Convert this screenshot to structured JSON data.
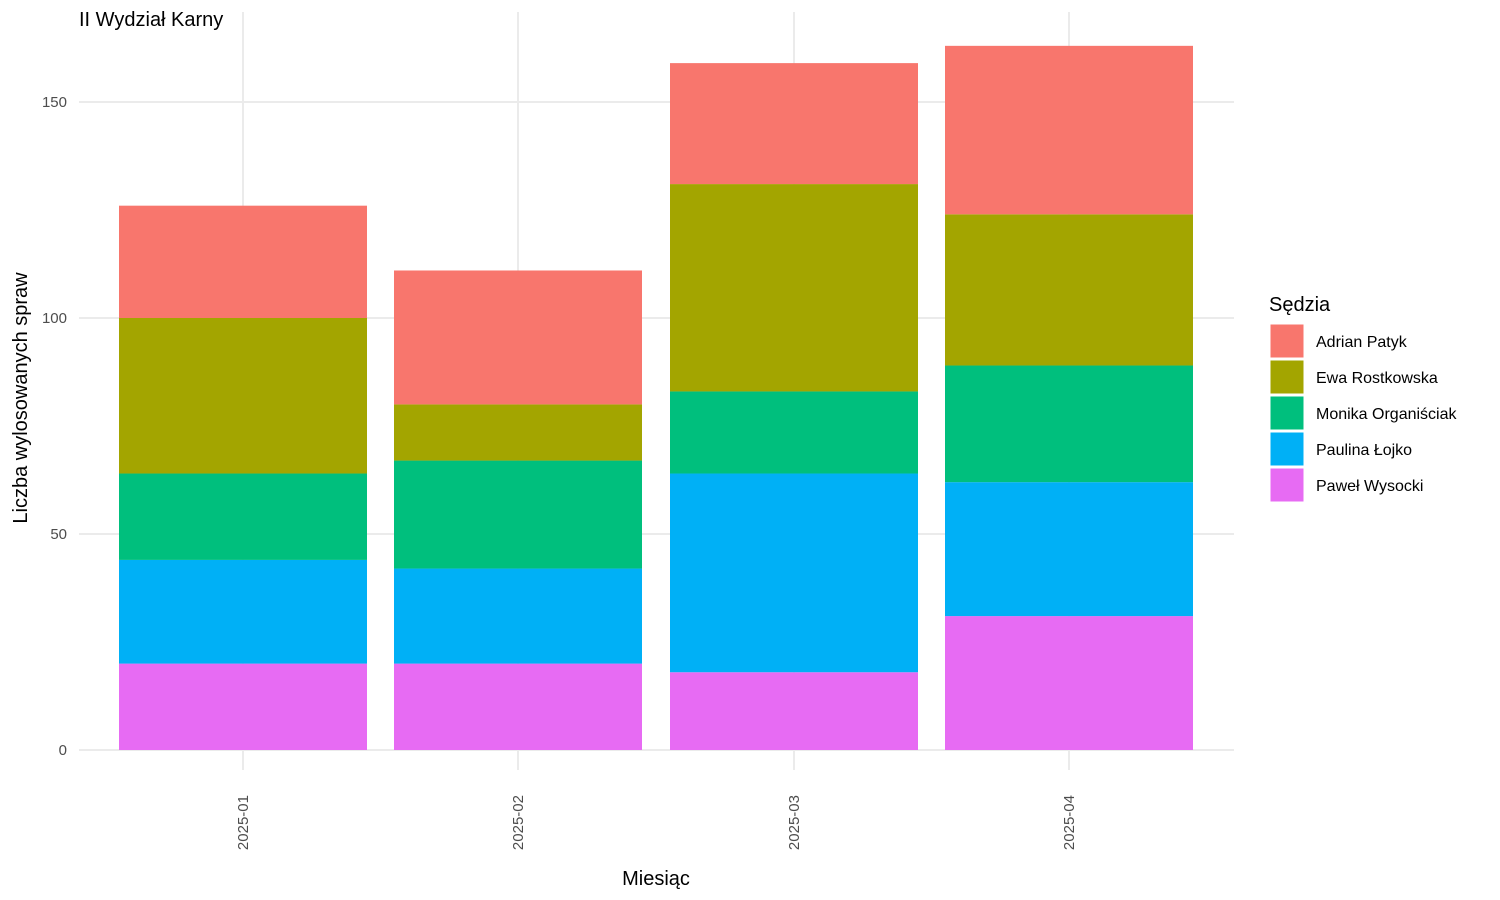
{
  "chart_data": {
    "type": "bar",
    "stacked": true,
    "title": "II Wydział Karny",
    "xlabel": "Miesiąc",
    "ylabel": "Liczba wylosowanych spraw",
    "ylim": [
      0,
      165
    ],
    "yticks": [
      0,
      50,
      100,
      150
    ],
    "grid": true,
    "legend_position": "right",
    "legend_title": "Sędzia",
    "categories": [
      "2025-01",
      "2025-02",
      "2025-03",
      "2025-04"
    ],
    "series": [
      {
        "name": "Adrian Patyk",
        "color": "#F8766D",
        "values": [
          26,
          31,
          28,
          39
        ]
      },
      {
        "name": "Ewa Rostkowska",
        "color": "#A3A500",
        "values": [
          36,
          13,
          48,
          35
        ]
      },
      {
        "name": "Monika Organiściak",
        "color": "#00BF7D",
        "values": [
          20,
          25,
          19,
          27
        ]
      },
      {
        "name": "Paulina Łojko",
        "color": "#00B0F6",
        "values": [
          24,
          22,
          46,
          31
        ]
      },
      {
        "name": "Paweł Wysocki",
        "color": "#E76BF3",
        "values": [
          20,
          20,
          18,
          31
        ]
      }
    ]
  }
}
